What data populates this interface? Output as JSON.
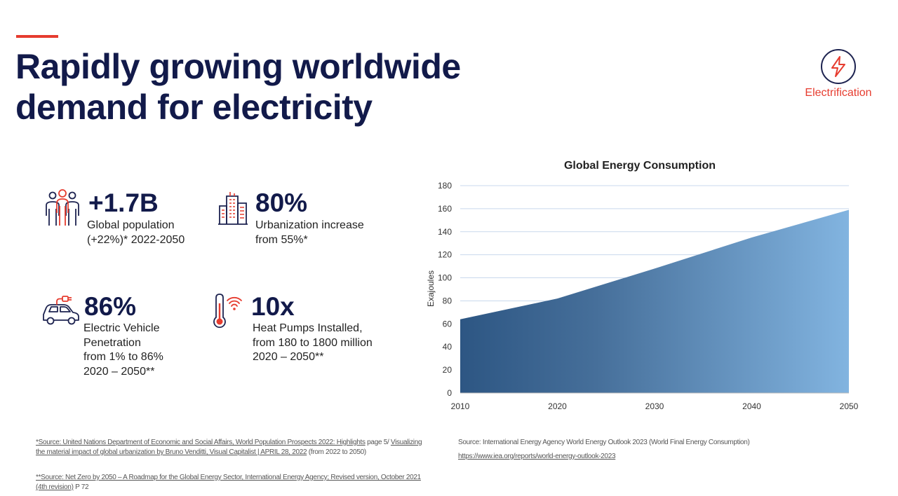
{
  "title": {
    "line1": "Rapidly growing worldwide",
    "line2": "demand for electricity"
  },
  "badge": {
    "label": "Electrification",
    "icon": "lightning-bolt-icon"
  },
  "stats": [
    {
      "icon": "people-group-icon",
      "value": "+1.7B",
      "desc": [
        "Global population",
        "(+22%)* 2022-2050"
      ]
    },
    {
      "icon": "city-buildings-icon",
      "value": "80%",
      "desc": [
        "Urbanization increase",
        "from 55%*"
      ]
    },
    {
      "icon": "electric-car-icon",
      "value": "86%",
      "desc": [
        "Electric Vehicle",
        "Penetration",
        "from 1% to 86%",
        "2020 – 2050**"
      ]
    },
    {
      "icon": "thermometer-wifi-icon",
      "value": "10x",
      "desc": [
        "Heat Pumps Installed,",
        "from 180 to 1800 million",
        "2020 – 2050**"
      ]
    }
  ],
  "colors": {
    "accent": "#e63c2f",
    "navy": "#121a4a",
    "area_dark": "#2d5683",
    "area_light": "#82b4e0",
    "grid": "#c9d8ec"
  },
  "chart_data": {
    "type": "area",
    "title": "Global Energy Consumption",
    "xlabel": "",
    "ylabel": "Exajoules",
    "x": [
      2010,
      2020,
      2030,
      2040,
      2050
    ],
    "series": [
      {
        "values": [
          64,
          82,
          108,
          135,
          159
        ]
      }
    ],
    "xlim": [
      2010,
      2050
    ],
    "ylim": [
      0,
      180
    ],
    "y_ticks": [
      0,
      20,
      40,
      60,
      80,
      100,
      120,
      140,
      160,
      180
    ],
    "x_ticks": [
      2010,
      2020,
      2030,
      2040,
      2050
    ],
    "grid": true,
    "legend": "none"
  },
  "footnotes": {
    "source1_a": "*Source:  United Nations Department of Economic and Social Affairs, World Population Prospects 2022: Highlights",
    "source1_b": "  page 5/  ",
    "source1_c": "Visualizing",
    "source1_d": "the material impact of global urbanization by Bruno Venditti, Visual Capitalist | APRIL 28, 2022",
    "source1_e": " (from 2022 to 2050)",
    "source2_a": "**Source: Net Zero by 2050 – A Roadmap for the Global Energy Sector, International Energy Agency; Revised version, October 2021",
    "source2_b": "(4th revision)",
    "source2_c": " P 72",
    "chart_source": "Source:  International Energy Agency World Energy Outlook 2023 (World Final Energy Consumption)",
    "chart_link": "https://www.iea.org/reports/world-energy-outlook-2023"
  }
}
